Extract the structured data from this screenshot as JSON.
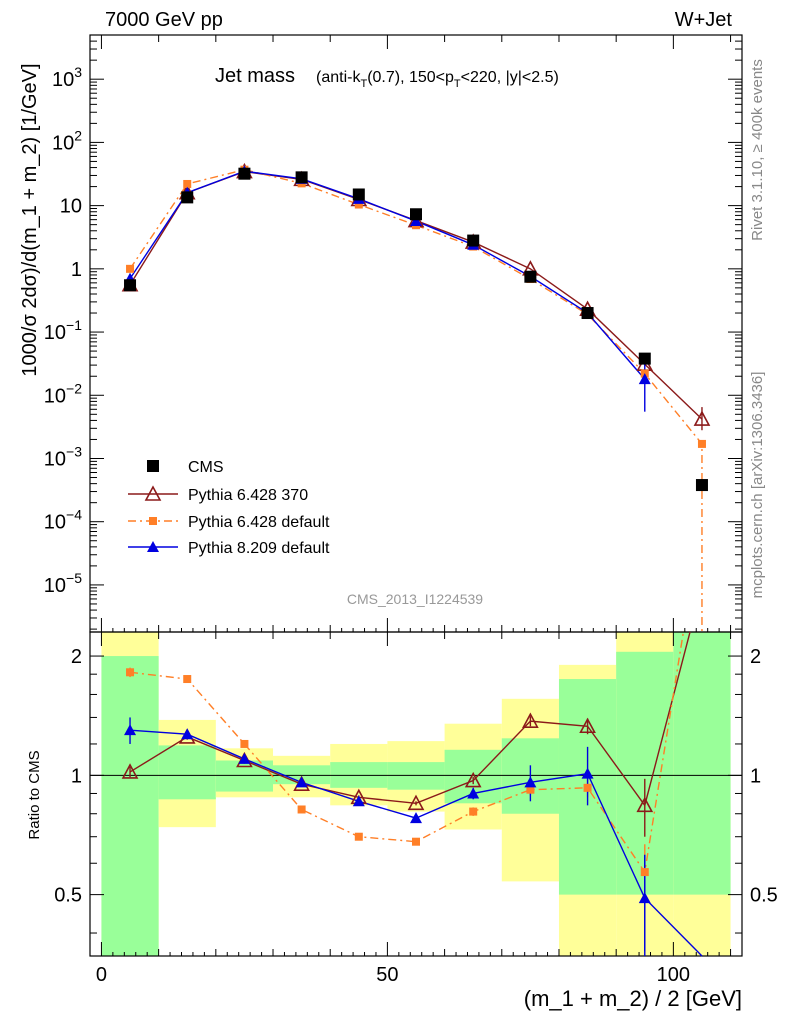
{
  "header": {
    "left": "7000 GeV pp",
    "right": "W+Jet"
  },
  "side_labels": {
    "rivet": "Rivet 3.1.10, ≥ 400k events",
    "mcplots": "mcplots.cern.ch [arXiv:1306.3436]"
  },
  "chart_data": {
    "type": "scatter",
    "title_main": "Jet mass",
    "title_sub": "(anti-k_T(0.7), 150<p_T<220, |y|<2.5)",
    "watermark": "CMS_2013_I1224539",
    "xlabel": "(m_1 + m_2) / 2 [GeV]",
    "ylabel_main": "1000/σ 2dσ)/d(m_1 + m_2) [1/GeV]",
    "ylabel_ratio": "Ratio to CMS",
    "xlim": [
      -2,
      112
    ],
    "ylim_main": [
      1.8e-06,
      5000
    ],
    "yscale_main": "log",
    "ylim_ratio": [
      0.35,
      2.3
    ],
    "yscale_ratio": "log",
    "x_ticks": [
      "0",
      "50",
      "100"
    ],
    "y_ticks_main": [
      "10^-5",
      "10^-4",
      "10^-3",
      "10^-2",
      "10^-1",
      "1",
      "10",
      "10^2",
      "10^3"
    ],
    "y_ticks_ratio": [
      "0.5",
      "1",
      "2"
    ],
    "bins": [
      [
        0,
        10
      ],
      [
        10,
        20
      ],
      [
        20,
        30
      ],
      [
        30,
        40
      ],
      [
        40,
        50
      ],
      [
        50,
        60
      ],
      [
        60,
        70
      ],
      [
        70,
        80
      ],
      [
        80,
        90
      ],
      [
        90,
        100
      ],
      [
        100,
        110
      ]
    ],
    "series": [
      {
        "name": "CMS",
        "color": "#000000",
        "style": "square",
        "x": [
          5,
          15,
          25,
          35,
          45,
          55,
          65,
          75,
          85,
          95,
          105
        ],
        "y": [
          0.55,
          13.5,
          32,
          28,
          15,
          7.3,
          2.8,
          0.75,
          0.2,
          0.038,
          0.00038
        ]
      },
      {
        "name": "Pythia 6.428 370",
        "color": "#8b1a1a",
        "style": "open-triangle",
        "x": [
          5,
          15,
          25,
          35,
          45,
          55,
          65,
          75,
          85,
          95,
          105
        ],
        "y": [
          0.56,
          16,
          34.5,
          26,
          12.5,
          5.8,
          2.65,
          1.0,
          0.23,
          0.031,
          0.0042
        ],
        "ratio": [
          1.02,
          1.25,
          1.09,
          0.95,
          0.88,
          0.85,
          0.97,
          1.37,
          1.33,
          0.84,
          3.0
        ],
        "ratio_err": [
          0.03,
          0.02,
          0.02,
          0.01,
          0.01,
          0.01,
          0.02,
          0.04,
          0.06,
          0.14,
          0
        ]
      },
      {
        "name": "Pythia 6.428 default",
        "color": "#ff7f27",
        "style": "square-dashdot",
        "x": [
          5,
          15,
          25,
          35,
          45,
          55,
          65,
          75,
          85,
          95,
          105
        ],
        "y": [
          1.0,
          22,
          37,
          22.5,
          10.4,
          4.9,
          2.25,
          0.69,
          0.19,
          0.022,
          0.0017
        ],
        "ratio": [
          1.82,
          1.75,
          1.2,
          0.82,
          0.7,
          0.68,
          0.81,
          0.92,
          0.93,
          0.57,
          4.5
        ],
        "ratio_err": [
          0.05,
          0.02,
          0.02,
          0.01,
          0.01,
          0.01,
          0.02,
          0.03,
          0.05,
          0.1,
          0
        ]
      },
      {
        "name": "Pythia 8.209 default",
        "color": "#0000e0",
        "style": "triangle",
        "x": [
          5,
          15,
          25,
          35,
          45,
          55,
          65,
          75,
          85,
          95,
          105
        ],
        "y": [
          0.7,
          16,
          35,
          26.5,
          12.8,
          5.7,
          2.4,
          0.76,
          0.2,
          0.018,
          0.0
        ],
        "ratio": [
          1.3,
          1.27,
          1.1,
          0.96,
          0.86,
          0.78,
          0.9,
          0.96,
          1.01,
          0.49,
          0
        ],
        "ratio_err": [
          0.1,
          0.03,
          0.02,
          0.01,
          0.01,
          0.02,
          0.03,
          0.1,
          0.17,
          0.14,
          0
        ]
      }
    ],
    "ratio_bands": {
      "green": [
        [
          0.34,
          2.0
        ],
        [
          0.87,
          1.19
        ],
        [
          0.91,
          1.09
        ],
        [
          0.95,
          1.06
        ],
        [
          0.93,
          1.08
        ],
        [
          0.92,
          1.08
        ],
        [
          0.85,
          1.16
        ],
        [
          0.8,
          1.24
        ],
        [
          0.5,
          1.75
        ],
        [
          0.5,
          2.05
        ],
        [
          0.5,
          2.4
        ]
      ],
      "yellow": [
        [
          0.34,
          2.4
        ],
        [
          0.74,
          1.38
        ],
        [
          0.88,
          1.17
        ],
        [
          0.88,
          1.12
        ],
        [
          0.84,
          1.2
        ],
        [
          0.81,
          1.22
        ],
        [
          0.73,
          1.35
        ],
        [
          0.54,
          1.56
        ],
        [
          0.34,
          1.9
        ],
        [
          0.34,
          2.4
        ],
        [
          0.34,
          2.4
        ]
      ]
    }
  }
}
